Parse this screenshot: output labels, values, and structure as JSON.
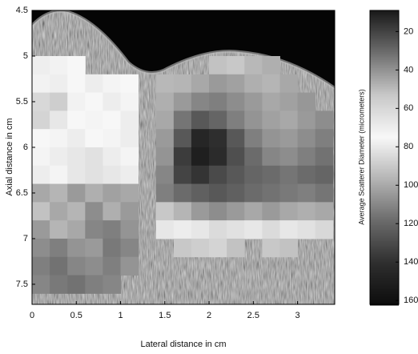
{
  "chart_data": {
    "type": "heatmap",
    "xlabel": "Lateral distance in cm",
    "ylabel": "Axial distance in cm",
    "xlim": [
      0,
      3.42
    ],
    "xticks": [
      0,
      0.5,
      1,
      1.5,
      2,
      2.5,
      3
    ],
    "ylim": [
      4.5,
      7.72
    ],
    "yticks": [
      4.5,
      5,
      5.5,
      6,
      6.5,
      7,
      7.5
    ],
    "y_reversed": true,
    "x": [
      0.1,
      0.3,
      0.5,
      0.7,
      0.9,
      1.1,
      1.3,
      1.5,
      1.7,
      1.9,
      2.1,
      2.3,
      2.5,
      2.7,
      2.9,
      3.1,
      3.3
    ],
    "y": [
      5.1,
      5.3,
      5.5,
      5.7,
      5.9,
      6.1,
      6.3,
      6.5,
      6.7,
      6.9,
      7.1,
      7.3,
      7.5
    ],
    "z": [
      [
        70,
        72,
        75,
        null,
        null,
        null,
        null,
        null,
        null,
        null,
        92,
        90,
        95,
        98,
        null,
        null,
        null
      ],
      [
        72,
        70,
        74,
        78,
        76,
        74,
        null,
        95,
        96,
        100,
        104,
        102,
        98,
        96,
        100,
        null,
        null
      ],
      [
        85,
        88,
        72,
        75,
        78,
        76,
        null,
        98,
        104,
        110,
        112,
        108,
        104,
        100,
        102,
        105,
        null
      ],
      [
        86,
        80,
        74,
        76,
        74,
        78,
        null,
        100,
        115,
        125,
        120,
        112,
        106,
        102,
        100,
        104,
        108
      ],
      [
        74,
        76,
        78,
        75,
        76,
        78,
        null,
        104,
        125,
        145,
        140,
        125,
        112,
        106,
        104,
        108,
        112
      ],
      [
        76,
        78,
        80,
        82,
        78,
        76,
        null,
        106,
        135,
        150,
        142,
        128,
        118,
        110,
        108,
        112,
        116
      ],
      [
        78,
        76,
        80,
        82,
        80,
        78,
        null,
        110,
        132,
        138,
        130,
        125,
        120,
        118,
        115,
        118,
        120
      ],
      [
        100,
        96,
        104,
        98,
        102,
        100,
        null,
        112,
        118,
        122,
        125,
        122,
        118,
        116,
        114,
        112,
        115
      ],
      [
        92,
        100,
        96,
        108,
        98,
        104,
        null,
        90,
        96,
        104,
        108,
        104,
        100,
        104,
        100,
        98,
        100
      ],
      [
        104,
        96,
        100,
        110,
        112,
        106,
        null,
        80,
        78,
        80,
        84,
        82,
        80,
        84,
        80,
        82,
        85
      ],
      [
        108,
        112,
        106,
        104,
        114,
        110,
        null,
        null,
        90,
        88,
        86,
        92,
        null,
        90,
        92,
        null,
        null
      ],
      [
        112,
        116,
        110,
        108,
        112,
        106,
        null,
        null,
        null,
        null,
        null,
        null,
        null,
        null,
        null,
        null,
        null
      ],
      [
        110,
        114,
        116,
        112,
        110,
        null,
        null,
        null,
        null,
        null,
        null,
        null,
        null,
        null,
        null,
        null,
        null
      ]
    ],
    "colormap": [
      "#1a1a1a",
      "#6e6e6e",
      "#c8c8c8",
      "#f8f8f8",
      "#b4b4b4",
      "#6a6a6a",
      "#2e2e2e",
      "#0c0c0c"
    ],
    "colorbar": {
      "label": "Average Scatterer Diameter (micrometers)",
      "lim": [
        9,
        162
      ],
      "ticks": [
        20,
        40,
        60,
        80,
        100,
        120,
        140,
        160
      ],
      "reversed": true
    }
  }
}
